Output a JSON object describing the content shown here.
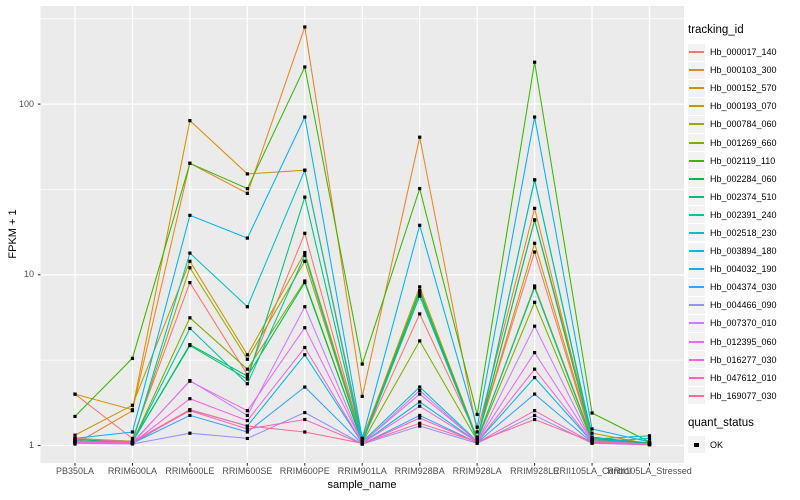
{
  "chart_data": {
    "type": "line",
    "title": "",
    "xlabel": "sample_name",
    "ylabel": "FPKM + 1",
    "y_scale": "log10",
    "ylim": [
      0.8,
      375
    ],
    "y_ticks": [
      1,
      10,
      100
    ],
    "y_tick_labels": [
      "1",
      "10",
      "100"
    ],
    "y_minor_ticks": [
      3.162,
      31.62,
      316.2
    ],
    "grid": "on",
    "legend_position": "right",
    "marker": "black-square",
    "categories": [
      "PB350LA",
      "RRIM600LA",
      "RRIM600LE",
      "RRIM600SE",
      "RRIM600PE",
      "RRIM901LA",
      "RRIM928BA",
      "RRIM928LA",
      "RRIM928LE",
      "RRII105LA_Control",
      "RRII105LA_Stressed"
    ],
    "legend": {
      "tracking_title": "tracking_id",
      "quant_title": "quant_status",
      "quant_value": "OK"
    },
    "series": [
      {
        "name": "Hb_000017_140",
        "color": "#F8766D",
        "values": [
          2.0,
          1.1,
          9.0,
          2.6,
          17.5,
          1.06,
          5.9,
          1.12,
          13.6,
          1.08,
          1.03
        ]
      },
      {
        "name": "Hb_000103_300",
        "color": "#E88526",
        "values": [
          1.02,
          1.6,
          45,
          30,
          283,
          1.94,
          64,
          1.2,
          24.5,
          1.12,
          1.02
        ]
      },
      {
        "name": "Hb_000152_570",
        "color": "#D89000",
        "values": [
          2.0,
          1.62,
          80,
          39,
          41,
          1.1,
          8.0,
          1.1,
          15.3,
          1.1,
          1.04
        ]
      },
      {
        "name": "Hb_000193_070",
        "color": "#C09B00",
        "values": [
          1.15,
          1.72,
          12.0,
          3.4,
          13.5,
          1.08,
          8.5,
          1.1,
          21.0,
          1.18,
          1.02
        ]
      },
      {
        "name": "Hb_000784_060",
        "color": "#A3A500",
        "values": [
          1.1,
          1.06,
          11.0,
          3.2,
          12.0,
          1.05,
          7.8,
          1.08,
          8.6,
          1.09,
          1.03
        ]
      },
      {
        "name": "Hb_001269_660",
        "color": "#7CAE00",
        "values": [
          1.06,
          1.04,
          5.6,
          2.8,
          9.2,
          1.04,
          4.1,
          1.07,
          6.9,
          1.06,
          1.02
        ]
      },
      {
        "name": "Hb_002119_110",
        "color": "#39B600",
        "values": [
          1.48,
          3.24,
          45,
          32,
          165,
          3.0,
          32,
          1.52,
          176,
          1.55,
          1.05
        ]
      },
      {
        "name": "Hb_002284_060",
        "color": "#00BB4E",
        "values": [
          1.09,
          1.05,
          3.9,
          2.55,
          9.0,
          1.04,
          8.1,
          1.07,
          36,
          1.12,
          1.03
        ]
      },
      {
        "name": "Hb_002374_510",
        "color": "#00BF7D",
        "values": [
          1.07,
          1.05,
          3.85,
          2.45,
          28.5,
          1.05,
          8.0,
          1.09,
          20.9,
          1.1,
          1.03
        ]
      },
      {
        "name": "Hb_002391_240",
        "color": "#00C1A3",
        "values": [
          1.06,
          1.04,
          4.85,
          2.3,
          13.0,
          1.04,
          7.5,
          1.08,
          8.4,
          1.07,
          1.02
        ]
      },
      {
        "name": "Hb_002518_230",
        "color": "#00BFC4",
        "values": [
          1.05,
          1.04,
          13.4,
          6.5,
          41,
          1.05,
          2.2,
          1.06,
          36,
          1.09,
          1.14
        ]
      },
      {
        "name": "Hb_003894_180",
        "color": "#00BAE0",
        "values": [
          1.04,
          1.03,
          1.62,
          1.3,
          3.4,
          1.03,
          1.8,
          1.05,
          2.5,
          1.05,
          1.1
        ]
      },
      {
        "name": "Hb_004032_190",
        "color": "#00B0F6",
        "values": [
          1.1,
          1.2,
          22.3,
          16.4,
          84,
          1.1,
          19.5,
          1.28,
          84,
          1.25,
          1.05
        ]
      },
      {
        "name": "Hb_004374_030",
        "color": "#35A2FF",
        "values": [
          1.05,
          1.03,
          1.5,
          1.2,
          2.2,
          1.02,
          1.5,
          1.04,
          2.0,
          1.04,
          1.02
        ]
      },
      {
        "name": "Hb_004466_090",
        "color": "#9590FF",
        "values": [
          1.03,
          1.02,
          1.18,
          1.1,
          1.56,
          1.02,
          1.3,
          1.03,
          1.5,
          1.03,
          1.01
        ]
      },
      {
        "name": "Hb_007370_010",
        "color": "#C77CFF",
        "values": [
          1.04,
          1.03,
          2.4,
          1.5,
          6.5,
          1.03,
          2.1,
          1.05,
          5.0,
          1.05,
          1.02
        ]
      },
      {
        "name": "Hb_012395_060",
        "color": "#E76BF3",
        "values": [
          1.05,
          1.04,
          2.38,
          1.6,
          4.9,
          1.04,
          2.0,
          1.06,
          3.5,
          1.06,
          1.02
        ]
      },
      {
        "name": "Hb_016277_030",
        "color": "#FA62DB",
        "values": [
          1.04,
          1.03,
          1.88,
          1.4,
          3.75,
          1.03,
          1.7,
          1.05,
          2.8,
          1.05,
          1.02
        ]
      },
      {
        "name": "Hb_047612_010",
        "color": "#FF62BC",
        "values": [
          1.06,
          1.04,
          1.6,
          1.25,
          1.42,
          1.02,
          1.45,
          1.04,
          1.6,
          1.04,
          1.01
        ]
      },
      {
        "name": "Hb_169077_030",
        "color": "#FF6A98",
        "values": [
          1.1,
          1.05,
          1.62,
          1.3,
          1.2,
          1.03,
          1.35,
          1.05,
          1.42,
          1.05,
          1.02
        ]
      }
    ]
  },
  "style": {
    "panel_bg": "#EBEBEB",
    "grid_color": "#FFFFFF",
    "tick_color": "#333333",
    "tick_label_color": "#4d4d4d",
    "point_color": "#000000"
  }
}
